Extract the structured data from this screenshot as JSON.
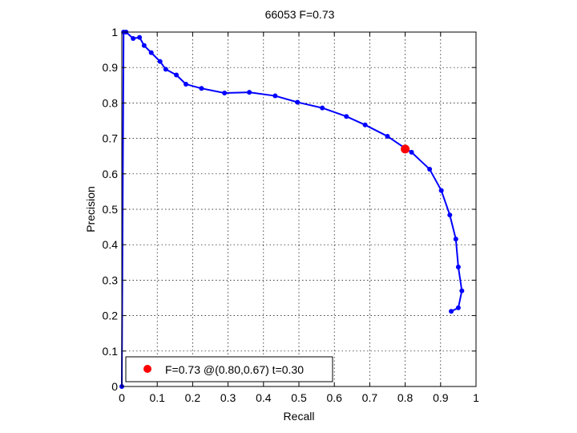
{
  "chart_data": {
    "type": "line",
    "title": "66053 F=0.73",
    "xlabel": "Recall",
    "ylabel": "Precision",
    "xlim": [
      0,
      1
    ],
    "ylim": [
      0,
      1
    ],
    "grid": true,
    "xticks": [
      "0",
      "0.1",
      "0.2",
      "0.3",
      "0.4",
      "0.5",
      "0.6",
      "0.7",
      "0.8",
      "0.9",
      "1"
    ],
    "yticks": [
      "0",
      "0.1",
      "0.2",
      "0.3",
      "0.4",
      "0.5",
      "0.6",
      "0.7",
      "0.8",
      "0.9",
      "1"
    ],
    "series": [
      {
        "color": "#0000ff",
        "marker": "dot",
        "points": [
          [
            0.0,
            0.0
          ],
          [
            0.005,
            1.0
          ],
          [
            0.012,
            1.0
          ],
          [
            0.032,
            0.982
          ],
          [
            0.05,
            0.985
          ],
          [
            0.063,
            0.962
          ],
          [
            0.083,
            0.942
          ],
          [
            0.108,
            0.917
          ],
          [
            0.124,
            0.895
          ],
          [
            0.154,
            0.879
          ],
          [
            0.181,
            0.853
          ],
          [
            0.225,
            0.841
          ],
          [
            0.29,
            0.828
          ],
          [
            0.36,
            0.83
          ],
          [
            0.433,
            0.82
          ],
          [
            0.496,
            0.802
          ],
          [
            0.566,
            0.786
          ],
          [
            0.634,
            0.762
          ],
          [
            0.687,
            0.738
          ],
          [
            0.75,
            0.706
          ],
          [
            0.8,
            0.672
          ],
          [
            0.818,
            0.661
          ],
          [
            0.869,
            0.613
          ],
          [
            0.902,
            0.553
          ],
          [
            0.926,
            0.484
          ],
          [
            0.943,
            0.416
          ],
          [
            0.95,
            0.337
          ],
          [
            0.96,
            0.27
          ],
          [
            0.95,
            0.222
          ],
          [
            0.93,
            0.212
          ]
        ]
      }
    ],
    "highlight": {
      "color": "#ff0000",
      "x": 0.8,
      "y": 0.67,
      "label": "F=0.73 @(0.80,0.67) t=0.30"
    },
    "legend_position": "bottom-left"
  }
}
